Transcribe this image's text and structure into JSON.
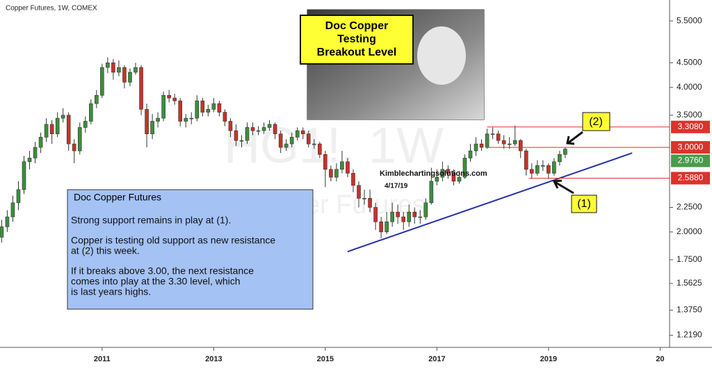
{
  "chart_data": {
    "type": "candlestick",
    "title": "Copper Futures, 1W, COMEX",
    "watermark": "HG1!, 1W",
    "watermark_subtitle": "Copper Futures",
    "log_scale": true,
    "up_color": "#3b8f3b",
    "down_color": "#c8322a",
    "xlim": [
      2009.17,
      2021.17
    ],
    "xticks": [
      2011,
      2013,
      2015,
      2017,
      2019,
      {
        "value": 2021,
        "label": "20"
      }
    ],
    "ylim": [
      1.15,
      6.08
    ],
    "yticks": [
      {
        "value": 5.5,
        "label": "5.5000"
      },
      {
        "value": 4.5,
        "label": "4.5000"
      },
      {
        "value": 4.0,
        "label": "4.0000"
      },
      {
        "value": 3.5,
        "label": "3.5000"
      },
      {
        "value": 2.25,
        "label": "2.2500"
      },
      {
        "value": 2.0,
        "label": "2.0000"
      },
      {
        "value": 1.75,
        "label": "1.7500"
      },
      {
        "value": 1.5625,
        "label": "1.5625"
      },
      {
        "value": 1.375,
        "label": "1.3750"
      },
      {
        "value": 1.219,
        "label": "1.2190"
      }
    ],
    "x": [
      2009.2,
      2009.3,
      2009.4,
      2009.5,
      2009.6,
      2009.7,
      2009.8,
      2009.9,
      2010.0,
      2010.1,
      2010.2,
      2010.3,
      2010.4,
      2010.5,
      2010.6,
      2010.7,
      2010.8,
      2010.9,
      2011.0,
      2011.1,
      2011.2,
      2011.3,
      2011.4,
      2011.5,
      2011.6,
      2011.7,
      2011.8,
      2011.9,
      2012.0,
      2012.1,
      2012.2,
      2012.3,
      2012.4,
      2012.5,
      2012.6,
      2012.7,
      2012.8,
      2012.9,
      2013.0,
      2013.1,
      2013.2,
      2013.3,
      2013.4,
      2013.5,
      2013.6,
      2013.7,
      2013.8,
      2013.9,
      2014.0,
      2014.1,
      2014.2,
      2014.3,
      2014.4,
      2014.5,
      2014.6,
      2014.7,
      2014.8,
      2014.9,
      2015.0,
      2015.1,
      2015.2,
      2015.3,
      2015.4,
      2015.5,
      2015.6,
      2015.7,
      2015.8,
      2015.9,
      2016.0,
      2016.1,
      2016.2,
      2016.3,
      2016.4,
      2016.5,
      2016.6,
      2016.7,
      2016.8,
      2016.9,
      2017.0,
      2017.1,
      2017.2,
      2017.3,
      2017.4,
      2017.5,
      2017.6,
      2017.7,
      2017.8,
      2017.9,
      2018.0,
      2018.1,
      2018.2,
      2018.3,
      2018.4,
      2018.5,
      2018.6,
      2018.7,
      2018.8,
      2018.9,
      2019.0,
      2019.1,
      2019.2,
      2019.3
    ],
    "open": [
      1.95,
      2.05,
      2.15,
      2.3,
      2.45,
      2.8,
      2.85,
      3.0,
      3.15,
      3.35,
      3.2,
      3.45,
      3.5,
      3.05,
      2.95,
      3.3,
      3.4,
      3.7,
      3.85,
      4.4,
      4.5,
      4.3,
      4.4,
      4.1,
      4.3,
      4.4,
      3.6,
      3.2,
      3.4,
      3.45,
      3.85,
      3.8,
      3.75,
      3.4,
      3.45,
      3.45,
      3.75,
      3.55,
      3.6,
      3.7,
      3.55,
      3.4,
      3.25,
      3.1,
      3.1,
      3.3,
      3.25,
      3.25,
      3.3,
      3.35,
      3.2,
      3.0,
      3.05,
      3.15,
      3.25,
      3.2,
      3.05,
      3.05,
      2.9,
      2.7,
      2.6,
      2.7,
      2.8,
      2.65,
      2.5,
      2.35,
      2.35,
      2.25,
      2.1,
      2.0,
      2.1,
      2.2,
      2.15,
      2.1,
      2.2,
      2.15,
      2.15,
      2.3,
      2.55,
      2.6,
      2.7,
      2.65,
      2.55,
      2.6,
      2.85,
      2.95,
      3.05,
      3.0,
      3.2,
      3.2,
      3.1,
      3.05,
      3.05,
      3.1,
      2.95,
      2.7,
      2.65,
      2.75,
      2.75,
      2.65,
      2.8,
      2.9
    ],
    "high": [
      2.12,
      2.22,
      2.38,
      2.55,
      2.88,
      2.95,
      3.08,
      3.22,
      3.45,
      3.42,
      3.55,
      3.62,
      3.55,
      3.12,
      3.38,
      3.48,
      3.78,
      3.95,
      4.48,
      4.62,
      4.58,
      4.55,
      4.45,
      4.38,
      4.5,
      4.45,
      3.7,
      3.52,
      3.55,
      3.92,
      3.95,
      3.88,
      3.8,
      3.52,
      3.55,
      3.85,
      3.8,
      3.68,
      3.8,
      3.75,
      3.6,
      3.45,
      3.35,
      3.18,
      3.38,
      3.38,
      3.32,
      3.38,
      3.42,
      3.38,
      3.25,
      3.12,
      3.22,
      3.3,
      3.3,
      3.25,
      3.12,
      3.08,
      2.95,
      2.75,
      2.78,
      2.95,
      2.85,
      2.7,
      2.55,
      2.45,
      2.45,
      2.3,
      2.15,
      2.2,
      2.3,
      2.28,
      2.2,
      2.28,
      2.25,
      2.22,
      2.35,
      2.72,
      2.7,
      2.8,
      2.75,
      2.7,
      2.68,
      2.9,
      3.05,
      3.15,
      3.12,
      3.28,
      3.3,
      3.25,
      3.18,
      3.15,
      3.33,
      3.12,
      2.98,
      2.78,
      2.82,
      2.82,
      2.78,
      2.85,
      2.95,
      3.0
    ],
    "low": [
      1.9,
      2.0,
      2.1,
      2.22,
      2.4,
      2.7,
      2.78,
      2.92,
      3.08,
      3.05,
      3.15,
      3.38,
      2.95,
      2.78,
      2.9,
      3.22,
      3.35,
      3.62,
      3.8,
      4.28,
      4.15,
      4.22,
      3.98,
      4.02,
      4.25,
      3.5,
      3.0,
      3.12,
      3.3,
      3.4,
      3.72,
      3.68,
      3.32,
      3.3,
      3.35,
      3.4,
      3.48,
      3.48,
      3.55,
      3.48,
      3.32,
      3.15,
      3.02,
      3.0,
      3.05,
      3.18,
      3.18,
      3.2,
      3.25,
      3.12,
      2.92,
      2.95,
      3.0,
      3.1,
      3.12,
      3.0,
      2.98,
      2.85,
      2.48,
      2.55,
      2.55,
      2.65,
      2.6,
      2.42,
      2.25,
      2.28,
      2.2,
      2.02,
      1.94,
      1.98,
      2.05,
      2.08,
      2.02,
      2.05,
      2.08,
      2.08,
      2.12,
      2.28,
      2.5,
      2.55,
      2.58,
      2.5,
      2.52,
      2.58,
      2.8,
      2.88,
      2.95,
      2.98,
      3.12,
      3.05,
      2.98,
      2.98,
      3.02,
      2.85,
      2.62,
      2.58,
      2.62,
      2.68,
      2.58,
      2.62,
      2.75,
      2.85
    ],
    "close": [
      2.05,
      2.15,
      2.3,
      2.45,
      2.8,
      2.85,
      3.0,
      3.15,
      3.35,
      3.2,
      3.45,
      3.5,
      3.05,
      2.95,
      3.3,
      3.4,
      3.7,
      3.85,
      4.4,
      4.5,
      4.3,
      4.4,
      4.1,
      4.3,
      4.4,
      3.6,
      3.2,
      3.4,
      3.45,
      3.85,
      3.8,
      3.75,
      3.4,
      3.45,
      3.45,
      3.75,
      3.55,
      3.6,
      3.7,
      3.55,
      3.4,
      3.25,
      3.1,
      3.1,
      3.3,
      3.25,
      3.25,
      3.3,
      3.35,
      3.2,
      3.0,
      3.05,
      3.15,
      3.25,
      3.2,
      3.05,
      3.05,
      2.9,
      2.7,
      2.6,
      2.7,
      2.8,
      2.65,
      2.5,
      2.35,
      2.35,
      2.25,
      2.1,
      2.0,
      2.1,
      2.2,
      2.15,
      2.1,
      2.2,
      2.15,
      2.15,
      2.3,
      2.55,
      2.6,
      2.7,
      2.65,
      2.55,
      2.6,
      2.85,
      2.95,
      3.05,
      3.0,
      3.2,
      3.2,
      3.1,
      3.05,
      3.05,
      3.1,
      2.95,
      2.7,
      2.65,
      2.75,
      2.75,
      2.65,
      2.8,
      2.9,
      2.976
    ],
    "levels": [
      {
        "value": 3.308,
        "label": "3.3080",
        "x_start": 2017.9,
        "color": "#d9342b"
      },
      {
        "value": 3.0,
        "label": "3.0000",
        "x_start": 2017.9,
        "color": "#d9342b"
      },
      {
        "value": 2.588,
        "label": "2.5880",
        "x_start": 2018.65,
        "color": "#d9342b"
      }
    ],
    "last_price": {
      "value": 2.976,
      "label": "2.9760",
      "color": "#4c9a4c"
    },
    "trendline": {
      "x": [
        2015.4,
        2020.5
      ],
      "y": [
        1.82,
        2.92
      ],
      "color": "#2430a8"
    },
    "callout_title": [
      "Doc Copper",
      "Testing",
      "Breakout Level"
    ],
    "watermark_site": "Kimblechartingsolutions.com",
    "date_note": "4/17/19",
    "marker_1": "(1)",
    "marker_2": "(2)",
    "text_box": {
      "title": "Doc Copper Futures",
      "paragraphs": [
        [
          "Strong support remains in play at (1)."
        ],
        [
          "Copper is testing old support as new resistance",
          "at (2) this week."
        ],
        [
          "If it breaks above 3.00, the next resistance",
          "comes into play at the 3.30 level, which",
          "is last years highs."
        ]
      ]
    }
  }
}
